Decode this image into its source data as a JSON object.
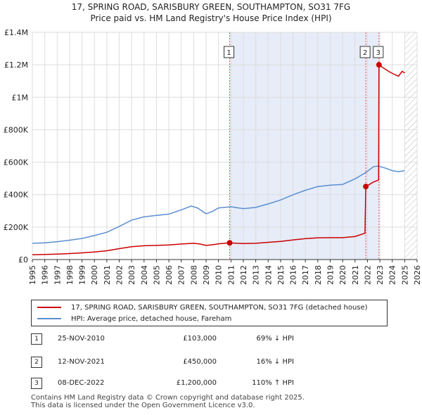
{
  "header": {
    "title": "17, SPRING ROAD, SARISBURY GREEN, SOUTHAMPTON, SO31 7FG",
    "subtitle": "Price paid vs. HM Land Registry's House Price Index (HPI)"
  },
  "chart_data": {
    "type": "line",
    "xlim": [
      1995,
      2026
    ],
    "ylim": [
      0,
      1400000
    ],
    "xticks": [
      "1995",
      "1996",
      "1997",
      "1998",
      "1999",
      "2000",
      "2001",
      "2002",
      "2003",
      "2004",
      "2005",
      "2006",
      "2007",
      "2008",
      "2009",
      "2010",
      "2011",
      "2012",
      "2013",
      "2014",
      "2015",
      "2016",
      "2017",
      "2018",
      "2019",
      "2020",
      "2021",
      "2022",
      "2023",
      "2024",
      "2025",
      "2026"
    ],
    "yticks": [
      {
        "value": 0,
        "label": "£0"
      },
      {
        "value": 200000,
        "label": "£200K"
      },
      {
        "value": 400000,
        "label": "£400K"
      },
      {
        "value": 600000,
        "label": "£600K"
      },
      {
        "value": 800000,
        "label": "£800K"
      },
      {
        "value": 1000000,
        "label": "£1M"
      },
      {
        "value": 1200000,
        "label": "£1.2M"
      },
      {
        "value": 1400000,
        "label": "£1.4M"
      }
    ],
    "shaded_range": [
      2010.9,
      2022.93
    ],
    "future_hatch_from": 2025.0,
    "colors": {
      "property": "#cc0000",
      "hpi": "#5b8fd0",
      "shade": "#e6ecf8",
      "marker_line": "#e05050"
    },
    "series": [
      {
        "name": "17, SPRING ROAD, SARISBURY GREEN, SOUTHAMPTON, SO31 7FG (detached house)",
        "color": "#cc0000",
        "points": [
          [
            1995.0,
            30000
          ],
          [
            1996.0,
            31000
          ],
          [
            1997.0,
            34000
          ],
          [
            1998.0,
            37000
          ],
          [
            1999.0,
            41000
          ],
          [
            2000.0,
            47000
          ],
          [
            2001.0,
            54000
          ],
          [
            2002.0,
            67000
          ],
          [
            2003.0,
            79000
          ],
          [
            2004.0,
            85000
          ],
          [
            2005.0,
            87000
          ],
          [
            2006.0,
            90000
          ],
          [
            2007.0,
            96000
          ],
          [
            2008.0,
            100000
          ],
          [
            2008.5,
            96000
          ],
          [
            2009.0,
            87000
          ],
          [
            2009.5,
            91000
          ],
          [
            2010.0,
            97000
          ],
          [
            2010.9,
            103000
          ],
          [
            2011.5,
            100000
          ],
          [
            2012.0,
            99000
          ],
          [
            2013.0,
            100000
          ],
          [
            2014.0,
            106000
          ],
          [
            2015.0,
            112000
          ],
          [
            2016.0,
            121000
          ],
          [
            2017.0,
            129000
          ],
          [
            2018.0,
            134000
          ],
          [
            2019.0,
            135000
          ],
          [
            2020.0,
            135000
          ],
          [
            2021.0,
            142000
          ],
          [
            2021.8,
            162000
          ],
          [
            2021.87,
            450000
          ],
          [
            2022.5,
            478000
          ],
          [
            2022.9,
            490000
          ],
          [
            2022.93,
            1200000
          ],
          [
            2023.3,
            1180000
          ],
          [
            2023.7,
            1160000
          ],
          [
            2024.2,
            1140000
          ],
          [
            2024.5,
            1130000
          ],
          [
            2024.8,
            1160000
          ],
          [
            2025.0,
            1150000
          ]
        ]
      },
      {
        "name": "HPI: Average price, detached house, Fareham",
        "color": "#5b8fd0",
        "points": [
          [
            1995.0,
            100000
          ],
          [
            1996.0,
            103000
          ],
          [
            1997.0,
            110000
          ],
          [
            1998.0,
            119000
          ],
          [
            1999.0,
            130000
          ],
          [
            2000.0,
            148000
          ],
          [
            2001.0,
            168000
          ],
          [
            2002.0,
            204000
          ],
          [
            2003.0,
            243000
          ],
          [
            2004.0,
            263000
          ],
          [
            2005.0,
            272000
          ],
          [
            2006.0,
            280000
          ],
          [
            2007.0,
            306000
          ],
          [
            2007.8,
            330000
          ],
          [
            2008.3,
            318000
          ],
          [
            2009.0,
            282000
          ],
          [
            2009.5,
            296000
          ],
          [
            2010.0,
            318000
          ],
          [
            2011.0,
            325000
          ],
          [
            2012.0,
            314000
          ],
          [
            2013.0,
            321000
          ],
          [
            2014.0,
            343000
          ],
          [
            2015.0,
            367000
          ],
          [
            2016.0,
            399000
          ],
          [
            2017.0,
            427000
          ],
          [
            2018.0,
            450000
          ],
          [
            2019.0,
            458000
          ],
          [
            2020.0,
            463000
          ],
          [
            2021.0,
            497000
          ],
          [
            2021.9,
            538000
          ],
          [
            2022.5,
            573000
          ],
          [
            2022.9,
            576000
          ],
          [
            2023.5,
            562000
          ],
          [
            2024.0,
            548000
          ],
          [
            2024.5,
            542000
          ],
          [
            2025.0,
            548000
          ]
        ]
      }
    ],
    "sales": [
      {
        "label": "1",
        "x": 2010.9,
        "y": 103000
      },
      {
        "label": "2",
        "x": 2021.87,
        "y": 450000
      },
      {
        "label": "3",
        "x": 2022.93,
        "y": 1200000
      }
    ]
  },
  "legend": {
    "property_label": "17, SPRING ROAD, SARISBURY GREEN, SOUTHAMPTON, SO31 7FG (detached house)",
    "hpi_label": "HPI: Average price, detached house, Fareham"
  },
  "transactions": [
    {
      "num": "1",
      "date": "25-NOV-2010",
      "price": "£103,000",
      "hpi": "69% ↓ HPI"
    },
    {
      "num": "2",
      "date": "12-NOV-2021",
      "price": "£450,000",
      "hpi": "16% ↓ HPI"
    },
    {
      "num": "3",
      "date": "08-DEC-2022",
      "price": "£1,200,000",
      "hpi": "110% ↑ HPI"
    }
  ],
  "footer": {
    "line1": "Contains HM Land Registry data © Crown copyright and database right 2025.",
    "line2": "This data is licensed under the Open Government Licence v3.0."
  }
}
